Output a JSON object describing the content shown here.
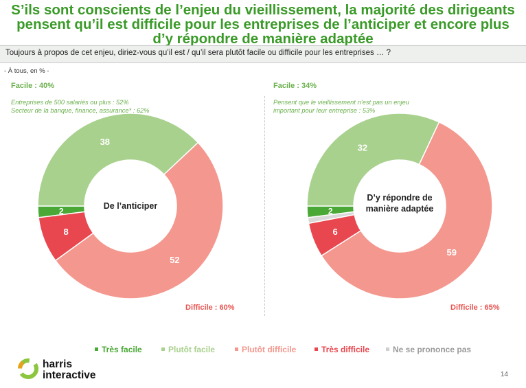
{
  "title": "S’ils sont conscients de l’enjeu du vieillissement, la majorité des dirigeants pensent qu’il est difficile pour les entreprises de l’anticiper et encore plus d’y répondre de manière adaptée",
  "question": "Toujours à propos de cet enjeu, diriez-vous qu’il est / qu’il sera plutôt facile ou difficile pour les entreprises … ?",
  "base": "- À tous, en % -",
  "colors": {
    "tres_facile": "#4aa836",
    "plutot_facile": "#a9d18e",
    "plutot_difficile": "#f4978e",
    "tres_difficile": "#e8474f",
    "nsp": "#d9d9d9",
    "title": "#3a9a28"
  },
  "chart_data": [
    {
      "type": "pie",
      "center_label": "De l’anticiper",
      "categories": [
        "Très facile",
        "Plutôt facile",
        "Plutôt difficile",
        "Très difficile",
        "Ne se prononce pas"
      ],
      "values": [
        2,
        38,
        52,
        8,
        0
      ],
      "facile_total": "Facile : 40%",
      "difficile_total": "Difficile : 60%",
      "notes": [
        "Entreprises de 500 salariés ou plus : 52%",
        "Secteur de la banque, finance, assurance* : 62%"
      ]
    },
    {
      "type": "pie",
      "center_label": "D’y répondre de manière adaptée",
      "categories": [
        "Très facile",
        "Plutôt facile",
        "Plutôt difficile",
        "Très difficile",
        "Ne se prononce pas"
      ],
      "values": [
        2,
        32,
        59,
        6,
        1
      ],
      "facile_total": "Facile : 34%",
      "difficile_total": "Difficile : 65%",
      "notes": [
        "Pensent que le vieillissement n’est pas un enjeu important pour leur entreprise : 53%"
      ]
    }
  ],
  "legend": [
    "Très facile",
    "Plutôt facile",
    "Plutôt difficile",
    "Très difficile",
    "Ne se prononce pas"
  ],
  "logo": {
    "line1": "harris",
    "line2": "interactive"
  },
  "page_number": "14"
}
